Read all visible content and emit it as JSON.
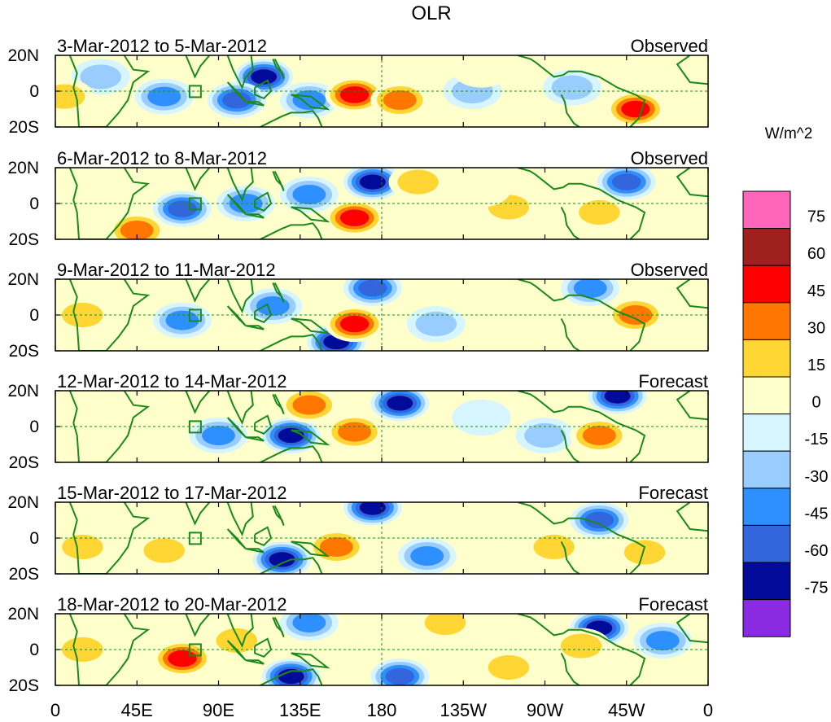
{
  "chart_data": {
    "type": "heatmap",
    "title": "OLR",
    "units_label": "W/m^2",
    "variable": "OLR anomaly",
    "x_tick_labels": [
      "0",
      "45E",
      "90E",
      "135E",
      "180",
      "135W",
      "90W",
      "45W",
      "0"
    ],
    "x_tick_degrees": [
      0,
      45,
      90,
      135,
      180,
      225,
      270,
      315,
      360
    ],
    "y_tick_labels": [
      "20N",
      "0",
      "20S"
    ],
    "y_tick_degrees": [
      20,
      0,
      -20
    ],
    "xlim": [
      0,
      360
    ],
    "ylim": [
      -20,
      20
    ],
    "colorbar": {
      "levels": [
        "75",
        "60",
        "45",
        "30",
        "15",
        "0",
        "-15",
        "-30",
        "-45",
        "-60",
        "-75"
      ],
      "colors": [
        "#ff66bb",
        "#a02020",
        "#ff0000",
        "#ff7700",
        "#ffd633",
        "#ffffcc",
        "#d6f5ff",
        "#99ccff",
        "#2e8fff",
        "#3366dd",
        "#000c99",
        "#8a2be2"
      ]
    },
    "panels": [
      {
        "period": "3-Mar-2012 to 5-Mar-2012",
        "status": "Observed",
        "features": [
          {
            "lon": 115,
            "lat": 8,
            "value": -70
          },
          {
            "lon": 100,
            "lat": -5,
            "value": -55
          },
          {
            "lon": 140,
            "lat": -5,
            "value": -45
          },
          {
            "lon": 60,
            "lat": -3,
            "value": -40
          },
          {
            "lon": 25,
            "lat": 8,
            "value": -20
          },
          {
            "lon": 165,
            "lat": -2,
            "value": 50
          },
          {
            "lon": 190,
            "lat": -5,
            "value": 35
          },
          {
            "lon": 320,
            "lat": -10,
            "value": 55
          },
          {
            "lon": 5,
            "lat": -3,
            "value": 30
          },
          {
            "lon": 230,
            "lat": 0,
            "value": -25
          },
          {
            "lon": 285,
            "lat": 2,
            "value": -20
          },
          {
            "lon": 235,
            "lat": 12,
            "value": 12
          }
        ]
      },
      {
        "period": "6-Mar-2012 to 8-Mar-2012",
        "status": "Observed",
        "features": [
          {
            "lon": 70,
            "lat": -3,
            "value": -50
          },
          {
            "lon": 105,
            "lat": 0,
            "value": -45
          },
          {
            "lon": 140,
            "lat": 5,
            "value": -40
          },
          {
            "lon": 175,
            "lat": 12,
            "value": -65
          },
          {
            "lon": 165,
            "lat": -8,
            "value": 55
          },
          {
            "lon": 315,
            "lat": 12,
            "value": -55
          },
          {
            "lon": 200,
            "lat": 12,
            "value": 18
          },
          {
            "lon": 250,
            "lat": -2,
            "value": 20
          },
          {
            "lon": 45,
            "lat": -15,
            "value": 35
          },
          {
            "lon": 300,
            "lat": -5,
            "value": 25
          },
          {
            "lon": 235,
            "lat": 8,
            "value": 15
          }
        ]
      },
      {
        "period": "9-Mar-2012 to 11-Mar-2012",
        "status": "Observed",
        "features": [
          {
            "lon": 70,
            "lat": -3,
            "value": -45
          },
          {
            "lon": 120,
            "lat": 5,
            "value": -40
          },
          {
            "lon": 175,
            "lat": 15,
            "value": -60
          },
          {
            "lon": 155,
            "lat": -15,
            "value": -70
          },
          {
            "lon": 165,
            "lat": -5,
            "value": 50
          },
          {
            "lon": 210,
            "lat": -5,
            "value": -25
          },
          {
            "lon": 295,
            "lat": 15,
            "value": -45
          },
          {
            "lon": 320,
            "lat": 0,
            "value": 35
          },
          {
            "lon": 15,
            "lat": 0,
            "value": 30
          },
          {
            "lon": 230,
            "lat": 10,
            "value": 15
          }
        ]
      },
      {
        "period": "12-Mar-2012 to 14-Mar-2012",
        "status": "Forecast",
        "features": [
          {
            "lon": 90,
            "lat": -5,
            "value": -45
          },
          {
            "lon": 130,
            "lat": -5,
            "value": -70
          },
          {
            "lon": 190,
            "lat": 13,
            "value": -65
          },
          {
            "lon": 140,
            "lat": 12,
            "value": 40
          },
          {
            "lon": 165,
            "lat": -3,
            "value": 40
          },
          {
            "lon": 310,
            "lat": 17,
            "value": -65
          },
          {
            "lon": 270,
            "lat": -5,
            "value": -30
          },
          {
            "lon": 300,
            "lat": -5,
            "value": 35
          },
          {
            "lon": 45,
            "lat": 5,
            "value": 15
          },
          {
            "lon": 235,
            "lat": 5,
            "value": -15
          }
        ]
      },
      {
        "period": "15-Mar-2012 to 17-Mar-2012",
        "status": "Forecast",
        "features": [
          {
            "lon": 125,
            "lat": -12,
            "value": -70
          },
          {
            "lon": 175,
            "lat": 17,
            "value": -65
          },
          {
            "lon": 155,
            "lat": -5,
            "value": 45
          },
          {
            "lon": 60,
            "lat": -7,
            "value": 30
          },
          {
            "lon": 300,
            "lat": 10,
            "value": -60
          },
          {
            "lon": 205,
            "lat": -10,
            "value": -35
          },
          {
            "lon": 230,
            "lat": 12,
            "value": 15
          },
          {
            "lon": 325,
            "lat": -8,
            "value": 20
          },
          {
            "lon": 275,
            "lat": -5,
            "value": 20
          },
          {
            "lon": 15,
            "lat": -5,
            "value": 25
          }
        ]
      },
      {
        "period": "18-Mar-2012 to 20-Mar-2012",
        "status": "Forecast",
        "features": [
          {
            "lon": 130,
            "lat": -15,
            "value": -70
          },
          {
            "lon": 140,
            "lat": 15,
            "value": -45
          },
          {
            "lon": 70,
            "lat": -5,
            "value": 50
          },
          {
            "lon": 100,
            "lat": 5,
            "value": 25
          },
          {
            "lon": 190,
            "lat": -15,
            "value": -60
          },
          {
            "lon": 300,
            "lat": 12,
            "value": -65
          },
          {
            "lon": 290,
            "lat": 2,
            "value": 30
          },
          {
            "lon": 250,
            "lat": -10,
            "value": 25
          },
          {
            "lon": 215,
            "lat": 15,
            "value": 20
          },
          {
            "lon": 335,
            "lat": 5,
            "value": -40
          },
          {
            "lon": 15,
            "lat": 0,
            "value": 25
          }
        ]
      }
    ]
  }
}
